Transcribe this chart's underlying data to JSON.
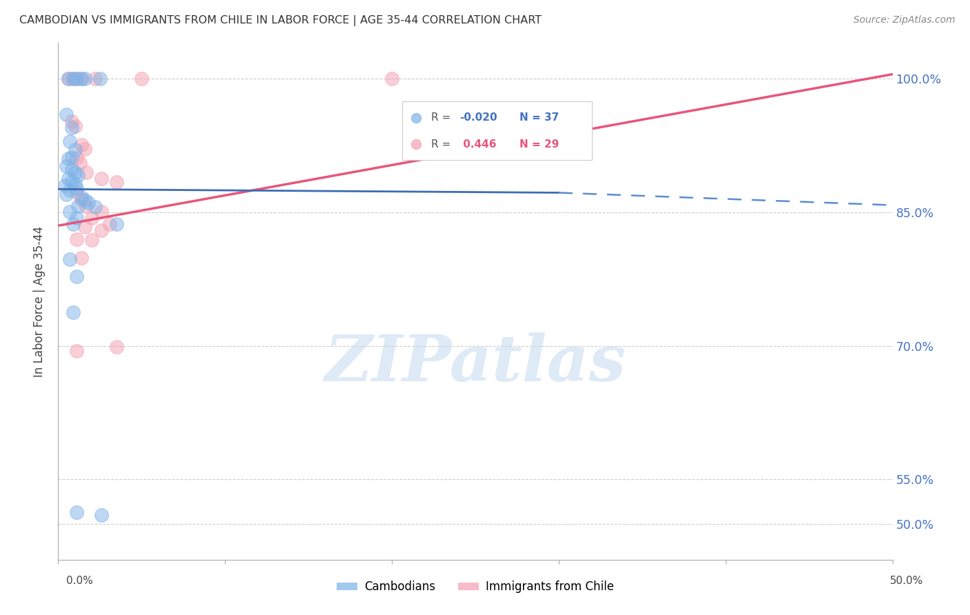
{
  "title": "CAMBODIAN VS IMMIGRANTS FROM CHILE IN LABOR FORCE | AGE 35-44 CORRELATION CHART",
  "source": "Source: ZipAtlas.com",
  "ylabel": "In Labor Force | Age 35-44",
  "xlim": [
    0.0,
    0.5
  ],
  "ylim": [
    0.46,
    1.04
  ],
  "ytick_vals": [
    0.5,
    0.55,
    0.7,
    0.85,
    1.0
  ],
  "ytick_labels": [
    "50.0%",
    "55.0%",
    "70.0%",
    "85.0%",
    "100.0%"
  ],
  "xtick_vals": [
    0.0,
    0.1,
    0.2,
    0.3,
    0.4,
    0.5
  ],
  "blue_R": "-0.020",
  "blue_N": "37",
  "pink_R": "0.446",
  "pink_N": "29",
  "blue_color": "#7EB3E8",
  "pink_color": "#F4A0B0",
  "blue_scatter": [
    [
      0.006,
      1.0
    ],
    [
      0.009,
      1.0
    ],
    [
      0.011,
      1.0
    ],
    [
      0.014,
      1.0
    ],
    [
      0.016,
      1.0
    ],
    [
      0.025,
      1.0
    ],
    [
      0.005,
      0.96
    ],
    [
      0.008,
      0.945
    ],
    [
      0.007,
      0.93
    ],
    [
      0.01,
      0.92
    ],
    [
      0.008,
      0.912
    ],
    [
      0.006,
      0.91
    ],
    [
      0.005,
      0.902
    ],
    [
      0.008,
      0.898
    ],
    [
      0.01,
      0.895
    ],
    [
      0.012,
      0.892
    ],
    [
      0.006,
      0.888
    ],
    [
      0.008,
      0.885
    ],
    [
      0.01,
      0.882
    ],
    [
      0.004,
      0.88
    ],
    [
      0.011,
      0.877
    ],
    [
      0.007,
      0.875
    ],
    [
      0.005,
      0.87
    ],
    [
      0.014,
      0.867
    ],
    [
      0.016,
      0.864
    ],
    [
      0.018,
      0.861
    ],
    [
      0.012,
      0.857
    ],
    [
      0.022,
      0.856
    ],
    [
      0.007,
      0.851
    ],
    [
      0.011,
      0.844
    ],
    [
      0.009,
      0.837
    ],
    [
      0.035,
      0.837
    ],
    [
      0.007,
      0.797
    ],
    [
      0.011,
      0.778
    ],
    [
      0.009,
      0.738
    ],
    [
      0.011,
      0.513
    ],
    [
      0.026,
      0.51
    ]
  ],
  "pink_scatter": [
    [
      0.006,
      1.0
    ],
    [
      0.009,
      1.0
    ],
    [
      0.011,
      1.0
    ],
    [
      0.014,
      1.0
    ],
    [
      0.022,
      1.0
    ],
    [
      0.05,
      1.0
    ],
    [
      0.008,
      0.952
    ],
    [
      0.01,
      0.947
    ],
    [
      0.014,
      0.926
    ],
    [
      0.016,
      0.921
    ],
    [
      0.011,
      0.911
    ],
    [
      0.013,
      0.906
    ],
    [
      0.017,
      0.895
    ],
    [
      0.026,
      0.888
    ],
    [
      0.035,
      0.884
    ],
    [
      0.011,
      0.872
    ],
    [
      0.014,
      0.864
    ],
    [
      0.017,
      0.857
    ],
    [
      0.026,
      0.851
    ],
    [
      0.02,
      0.844
    ],
    [
      0.031,
      0.837
    ],
    [
      0.016,
      0.834
    ],
    [
      0.026,
      0.83
    ],
    [
      0.011,
      0.82
    ],
    [
      0.02,
      0.819
    ],
    [
      0.014,
      0.799
    ],
    [
      0.035,
      0.699
    ],
    [
      0.011,
      0.694
    ],
    [
      0.2,
      1.0
    ]
  ],
  "blue_line_solid": [
    [
      0.0,
      0.876
    ],
    [
      0.3,
      0.872
    ]
  ],
  "blue_line_dash": [
    [
      0.3,
      0.872
    ],
    [
      0.5,
      0.858
    ]
  ],
  "pink_line": [
    [
      0.0,
      0.835
    ],
    [
      0.5,
      1.005
    ]
  ],
  "watermark_text": "ZIPatlas",
  "background_color": "#FFFFFF",
  "legend_blue_color": "#7EB3E8",
  "legend_pink_color": "#F4A0B0",
  "legend_text_blue": "#4472C4",
  "legend_text_pink": "#E8557A"
}
